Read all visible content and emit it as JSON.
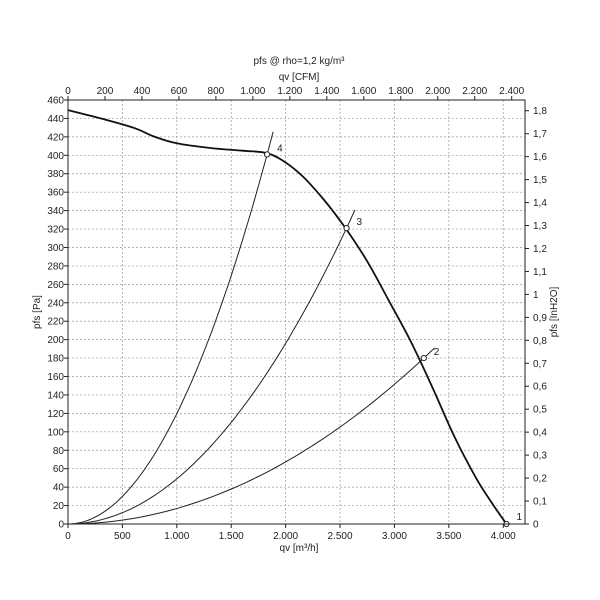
{
  "chart_data": {
    "type": "line",
    "title": "pfs @ rho=1,2 kg/m³",
    "xlabel": "qv [m³/h]",
    "ylabel": "pfs [Pa]",
    "x2label": "qv [CFM]",
    "y2label": "pfs [InH2O]",
    "xlim": [
      0,
      4200
    ],
    "ylim": [
      0,
      460
    ],
    "x_ticks": [
      0,
      500,
      1000,
      1500,
      2000,
      2500,
      3000,
      3500,
      4000
    ],
    "x_tick_labels": [
      "0",
      "500",
      "1.000",
      "1.500",
      "2.000",
      "2.500",
      "3.000",
      "3.500",
      "4.000"
    ],
    "y_ticks": [
      0,
      20,
      40,
      60,
      80,
      100,
      120,
      140,
      160,
      180,
      200,
      220,
      240,
      260,
      280,
      300,
      320,
      340,
      360,
      380,
      400,
      420,
      440,
      460
    ],
    "y_tick_labels": [
      "0",
      "20",
      "40",
      "60",
      "80",
      "100",
      "120",
      "140",
      "160",
      "180",
      "200",
      "220",
      "240",
      "260",
      "280",
      "300",
      "320",
      "340",
      "360",
      "380",
      "400",
      "420",
      "440",
      "460"
    ],
    "x2_ticks": [
      0,
      200,
      400,
      600,
      800,
      1000,
      1200,
      1400,
      1600,
      1800,
      2000,
      2200,
      2400
    ],
    "x2_tick_labels": [
      "0",
      "200",
      "400",
      "600",
      "800",
      "1.000",
      "1.200",
      "1.400",
      "1.600",
      "1.800",
      "2.000",
      "2.200",
      "2.400"
    ],
    "y2_ticks": [
      0,
      0.1,
      0.2,
      0.3,
      0.4,
      0.5,
      0.6,
      0.7,
      0.8,
      0.9,
      1.0,
      1.1,
      1.2,
      1.3,
      1.4,
      1.5,
      1.6,
      1.7,
      1.8
    ],
    "y2_tick_labels": [
      "0",
      "0,1",
      "0,2",
      "0,3",
      "0,4",
      "0,5",
      "0,6",
      "0,7",
      "0,8",
      "0,9",
      "1",
      "1,1",
      "1,2",
      "1,3",
      "1,4",
      "1,5",
      "1,6",
      "1,7",
      "1,8"
    ],
    "grid": true,
    "fan_curve": {
      "x": [
        0,
        300,
        600,
        800,
        1000,
        1300,
        1600,
        1800,
        1950,
        2150,
        2350,
        2550,
        2750,
        2950,
        3150,
        3350,
        3550,
        3750,
        3900,
        4030
      ],
      "y": [
        449,
        440,
        430,
        420,
        413,
        408,
        405,
        403,
        396,
        378,
        352,
        321,
        285,
        242,
        198,
        148,
        95,
        50,
        22,
        0
      ]
    },
    "system_curves": [
      {
        "name": "2",
        "x_end": 3270,
        "y_end": 180
      },
      {
        "name": "3",
        "x_end": 2560,
        "y_end": 321
      },
      {
        "name": "4",
        "x_end": 1830,
        "y_end": 401
      }
    ],
    "operating_points": [
      {
        "label": "1",
        "x": 4030,
        "y": 0
      },
      {
        "label": "2",
        "x": 3270,
        "y": 180
      },
      {
        "label": "3",
        "x": 2560,
        "y": 321
      },
      {
        "label": "4",
        "x": 1830,
        "y": 401
      }
    ]
  }
}
